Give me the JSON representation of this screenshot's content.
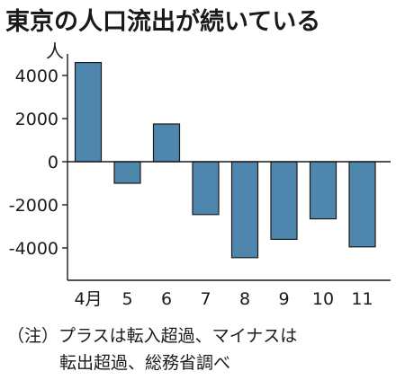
{
  "chart_data": {
    "type": "bar",
    "title": "東京の人口流出が続いている",
    "unit_label": "人",
    "categories": [
      "4月",
      "5",
      "6",
      "7",
      "8",
      "9",
      "10",
      "11"
    ],
    "values": [
      4600,
      -1000,
      1750,
      -2450,
      -4450,
      -3600,
      -2650,
      -3950
    ],
    "ylim": [
      -5500,
      5000
    ],
    "yticks": [
      4000,
      2000,
      0,
      -2000,
      -4000
    ],
    "ytick_labels": [
      "4000",
      "2000",
      "0",
      "-2000",
      "-4000"
    ],
    "bar_color": "#4f86ad",
    "grid": false
  },
  "notes": {
    "line1": "（注）プラスは転入超過、マイナスは",
    "line2": "転出超過、総務省調べ"
  }
}
